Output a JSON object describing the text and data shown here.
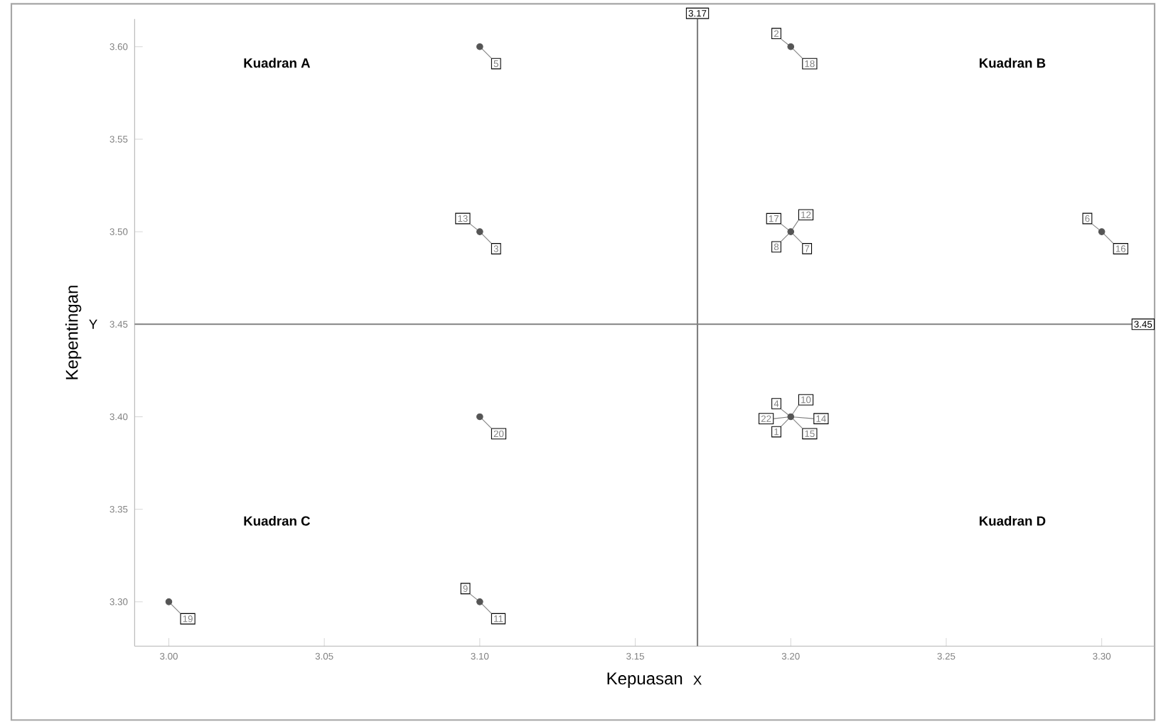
{
  "chart_data": {
    "type": "scatter",
    "xlabel": "Kepuasan",
    "ylabel": "Kepentingan",
    "x": [
      3.1,
      3.1,
      3.2,
      3.2,
      3.3,
      3.1,
      3.2,
      3.0,
      3.1
    ],
    "values": [
      3.6,
      3.5,
      3.6,
      3.5,
      3.5,
      3.4,
      3.4,
      3.3,
      3.3
    ],
    "color": "#555555",
    "marker": "circle",
    "xlim": [
      2.989,
      3.317
    ],
    "ylim": [
      3.276,
      3.615
    ],
    "xticks": [
      {
        "value": 3.0,
        "label": "3.00"
      },
      {
        "value": 3.05,
        "label": "3.05"
      },
      {
        "value": 3.1,
        "label": "3.10"
      },
      {
        "value": 3.15,
        "label": "3.15"
      },
      {
        "value": 3.2,
        "label": "3.20"
      },
      {
        "value": 3.25,
        "label": "3.25"
      },
      {
        "value": 3.3,
        "label": "3.30"
      }
    ],
    "yticks": [
      {
        "value": 3.3,
        "label": "3.30"
      },
      {
        "value": 3.35,
        "label": "3.35"
      },
      {
        "value": 3.4,
        "label": "3.40"
      },
      {
        "value": 3.45,
        "label": "3.45"
      },
      {
        "value": 3.5,
        "label": "3.50"
      },
      {
        "value": 3.55,
        "label": "3.55"
      },
      {
        "value": 3.6,
        "label": "3.60"
      }
    ],
    "ref_lines": [
      {
        "axis": "x",
        "value": 3.17,
        "label": "3.17",
        "color": "#808080"
      },
      {
        "axis": "y",
        "value": 3.45,
        "label": "3.45",
        "color": "#808080"
      }
    ],
    "annotations": [
      "Kuadran A",
      "Kuadran B",
      "Kuadran C",
      "Kuadran D",
      "X",
      "Y",
      {
        "text": "5",
        "x": 3.1,
        "y": 3.6
      },
      {
        "text": "3",
        "x": 3.1,
        "y": 3.5
      },
      {
        "text": "13",
        "x": 3.1,
        "y": 3.5
      },
      {
        "text": "18",
        "x": 3.2,
        "y": 3.6
      },
      {
        "text": "2",
        "x": 3.2,
        "y": 3.6
      },
      {
        "text": "7",
        "x": 3.2,
        "y": 3.5
      },
      {
        "text": "17",
        "x": 3.2,
        "y": 3.5
      },
      {
        "text": "12",
        "x": 3.2,
        "y": 3.5
      },
      {
        "text": "8",
        "x": 3.2,
        "y": 3.5
      },
      {
        "text": "16",
        "x": 3.3,
        "y": 3.5
      },
      {
        "text": "6",
        "x": 3.3,
        "y": 3.5
      },
      {
        "text": "20",
        "x": 3.1,
        "y": 3.4
      },
      {
        "text": "15",
        "x": 3.2,
        "y": 3.4
      },
      {
        "text": "4",
        "x": 3.2,
        "y": 3.4
      },
      {
        "text": "10",
        "x": 3.2,
        "y": 3.4
      },
      {
        "text": "1",
        "x": 3.2,
        "y": 3.4
      },
      {
        "text": "14",
        "x": 3.2,
        "y": 3.4
      },
      {
        "text": "22",
        "x": 3.2,
        "y": 3.4
      },
      {
        "text": "19",
        "x": 3.0,
        "y": 3.3
      },
      {
        "text": "11",
        "x": 3.1,
        "y": 3.3
      },
      {
        "text": "9",
        "x": 3.1,
        "y": 3.3
      }
    ]
  }
}
